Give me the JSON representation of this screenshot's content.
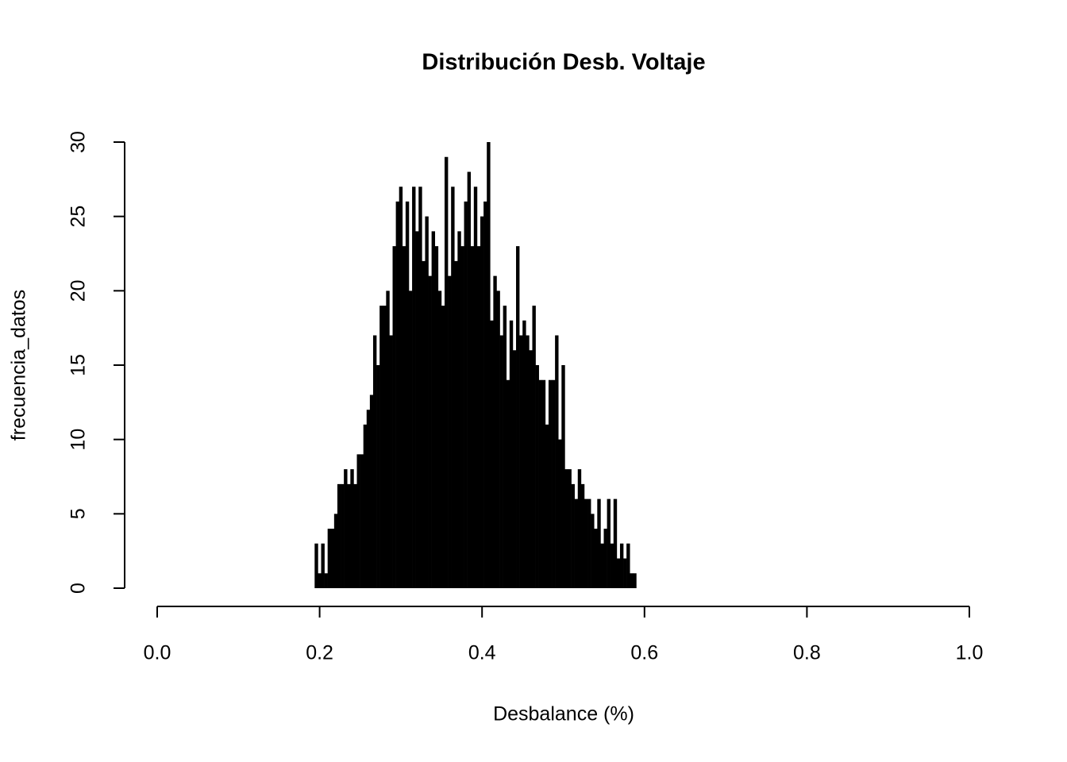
{
  "chart_data": {
    "type": "needle",
    "title": "Distribución Desb. Voltaje",
    "x_label": "Desbalance (%)",
    "y_label": "frecuencia_datos",
    "color": "#000000",
    "x": [
      0.196,
      0.2,
      0.204,
      0.208,
      0.212,
      0.216,
      0.22,
      0.224,
      0.228,
      0.232,
      0.236,
      0.24,
      0.244,
      0.248,
      0.252,
      0.256,
      0.26,
      0.264,
      0.268,
      0.272,
      0.276,
      0.28,
      0.284,
      0.288,
      0.292,
      0.296,
      0.3,
      0.304,
      0.308,
      0.312,
      0.316,
      0.32,
      0.324,
      0.328,
      0.332,
      0.336,
      0.34,
      0.344,
      0.348,
      0.352,
      0.356,
      0.36,
      0.364,
      0.368,
      0.372,
      0.376,
      0.38,
      0.384,
      0.388,
      0.392,
      0.396,
      0.4,
      0.404,
      0.408,
      0.412,
      0.416,
      0.42,
      0.424,
      0.428,
      0.432,
      0.436,
      0.44,
      0.444,
      0.448,
      0.452,
      0.456,
      0.46,
      0.464,
      0.468,
      0.472,
      0.476,
      0.48,
      0.484,
      0.488,
      0.492,
      0.496,
      0.5,
      0.504,
      0.508,
      0.512,
      0.516,
      0.52,
      0.524,
      0.528,
      0.532,
      0.536,
      0.54,
      0.544,
      0.548,
      0.552,
      0.556,
      0.56,
      0.564,
      0.568,
      0.572,
      0.576,
      0.58,
      0.584,
      0.588
    ],
    "values": [
      3,
      1,
      3,
      1,
      4,
      4,
      5,
      7,
      7,
      8,
      7,
      8,
      7,
      9,
      9,
      11,
      12,
      13,
      17,
      15,
      19,
      19,
      20,
      17,
      23,
      26,
      27,
      23,
      26,
      20,
      27,
      24,
      27,
      22,
      25,
      21,
      24,
      23,
      20,
      19,
      29,
      21,
      27,
      22,
      24,
      23,
      26,
      28,
      23,
      27,
      23,
      25,
      26,
      30,
      18,
      21,
      20,
      17,
      19,
      14,
      18,
      16,
      23,
      17,
      18,
      17,
      16,
      19,
      15,
      14,
      14,
      11,
      14,
      14,
      17,
      10,
      15,
      8,
      8,
      7,
      6,
      8,
      7,
      6,
      6,
      5,
      4,
      6,
      3,
      4,
      6,
      3,
      6,
      2,
      3,
      2,
      3,
      1,
      1
    ],
    "xlim": [
      0,
      1
    ],
    "xticks": [
      {
        "value": 0,
        "label": "0.0"
      },
      0.2,
      0.4,
      0.6,
      0.8,
      {
        "value": 1,
        "label": "1.0"
      }
    ],
    "ylim": [
      0,
      30
    ],
    "yticks": [
      0,
      5,
      10,
      15,
      20,
      25,
      30
    ]
  }
}
